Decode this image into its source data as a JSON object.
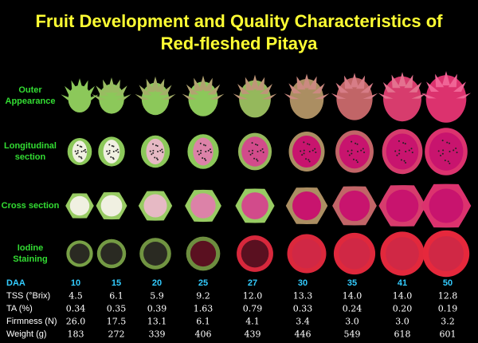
{
  "header": {
    "title_lines": [
      "Fruit Development and Quality Characteristics of",
      "Red-fleshed Pitaya"
    ]
  },
  "row_labels": [
    "Outer Appearance",
    "Longitudinal section",
    "Cross section",
    "Iodine Staining"
  ],
  "table": {
    "rows": [
      [
        "DAA",
        "10",
        "15",
        "20",
        "25",
        "27",
        "30",
        "35",
        "41",
        "50"
      ],
      [
        "TSS (°Brix)",
        "4.5",
        "6.1",
        "5.9",
        "9.2",
        "12.0",
        "13.3",
        "14.0",
        "14.0",
        "12.8"
      ],
      [
        "TA (%)",
        "0.34",
        "0.35",
        "0.39",
        "1.63",
        "0.79",
        "0.33",
        "0.24",
        "0.20",
        "0.19"
      ],
      [
        "Firmness (N)",
        "26.0",
        "17.5",
        "13.1",
        "6.1",
        "4.1",
        "3.4",
        "3.0",
        "3.0",
        "3.2"
      ],
      [
        "Weight (g)",
        "183",
        "272",
        "339",
        "406",
        "439",
        "446",
        "549",
        "618",
        "601"
      ]
    ]
  }
}
